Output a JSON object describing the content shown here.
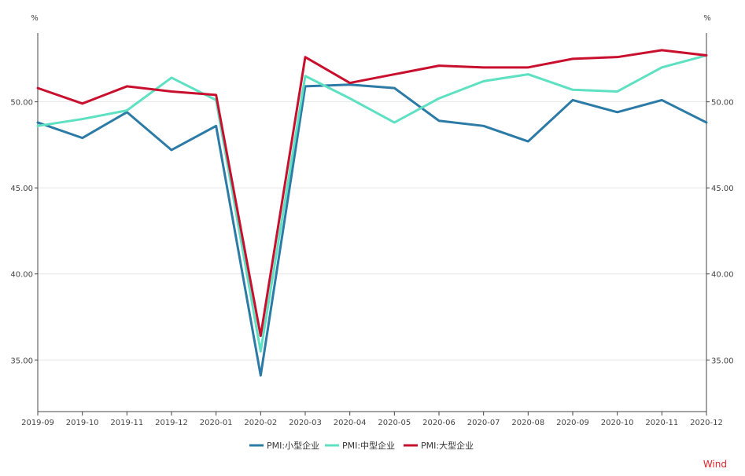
{
  "chart_data": {
    "type": "line",
    "title": "",
    "x": [
      "2019-09",
      "2019-10",
      "2019-11",
      "2019-12",
      "2020-01",
      "2020-02",
      "2020-03",
      "2020-04",
      "2020-05",
      "2020-06",
      "2020-07",
      "2020-08",
      "2020-09",
      "2020-10",
      "2020-11",
      "2020-12"
    ],
    "y_left_unit": "%",
    "y_right_unit": "%",
    "ylim": [
      32.0,
      54.0
    ],
    "yticks": [
      35.0,
      40.0,
      45.0,
      50.0
    ],
    "ytick_labels": [
      "35.00",
      "40.00",
      "45.00",
      "50.00"
    ],
    "grid": true,
    "legend_position": "bottom-center",
    "series": [
      {
        "name": "PMI:小型企业",
        "color": "#2b7ba6",
        "values": [
          48.8,
          47.9,
          49.4,
          47.2,
          48.6,
          34.1,
          50.9,
          51.0,
          50.8,
          48.9,
          48.6,
          47.7,
          50.1,
          49.4,
          50.1,
          48.8
        ]
      },
      {
        "name": "PMI:中型企业",
        "color": "#5ee0c2",
        "values": [
          48.6,
          49.0,
          49.5,
          51.4,
          50.1,
          35.5,
          51.5,
          50.2,
          48.8,
          50.2,
          51.2,
          51.6,
          50.7,
          50.6,
          52.0,
          52.7
        ]
      },
      {
        "name": "PMI:大型企业",
        "color": "#c8102e",
        "values": [
          50.8,
          49.9,
          50.9,
          50.6,
          50.4,
          36.4,
          52.6,
          51.1,
          51.6,
          52.1,
          52.0,
          52.0,
          52.5,
          52.6,
          53.0,
          52.7
        ]
      }
    ]
  },
  "footer": {
    "source": "Wind"
  }
}
